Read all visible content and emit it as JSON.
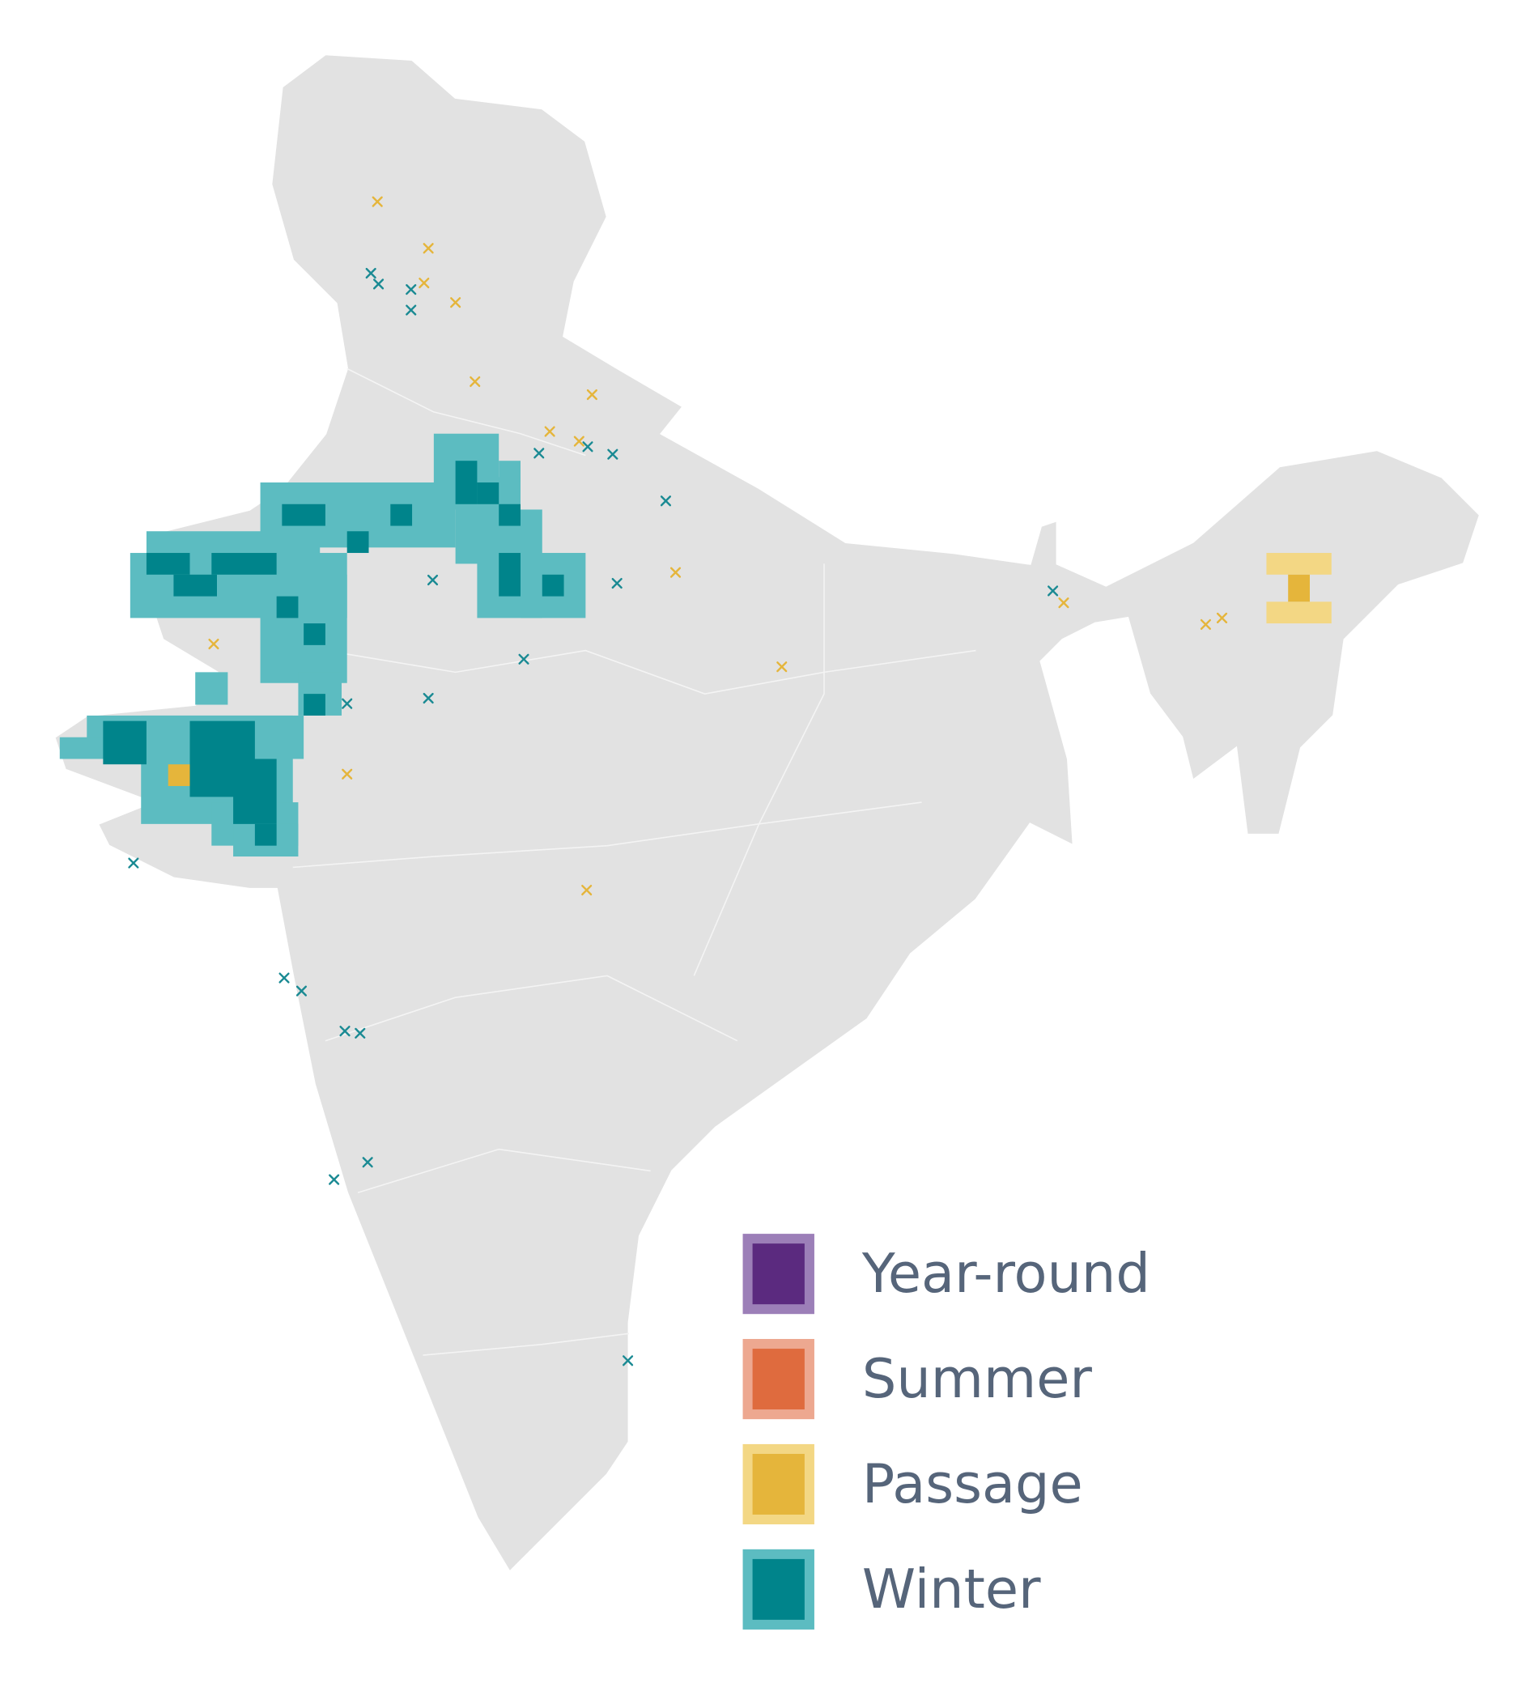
{
  "legend": {
    "items": [
      {
        "label": "Year-round",
        "color": "#5b2a7f",
        "border_color": "#9c7fb8"
      },
      {
        "label": "Summer",
        "color": "#df6b3e",
        "border_color": "#eda890"
      },
      {
        "label": "Passage",
        "color": "#e5b53b",
        "border_color": "#f3d784"
      },
      {
        "label": "Winter",
        "color": "#00848b",
        "border_color": "#5cbcc1"
      }
    ]
  }
}
